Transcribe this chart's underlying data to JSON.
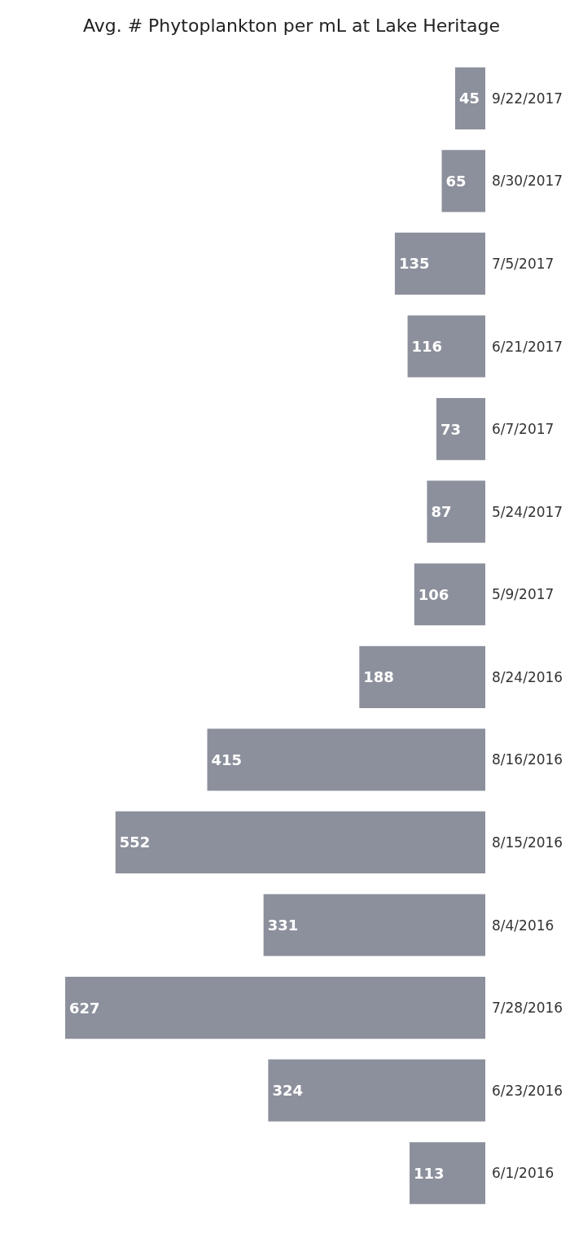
{
  "chart_data": {
    "type": "bar",
    "title": "Avg. # Phytoplankton per mL at Lake Heritage",
    "orientation": "horizontal",
    "categories": [
      "9/22/2017",
      "8/30/2017",
      "7/5/2017",
      "6/21/2017",
      "6/7/2017",
      "5/24/2017",
      "5/9/2017",
      "8/24/2016",
      "8/16/2016",
      "8/15/2016",
      "8/4/2016",
      "7/28/2016",
      "6/23/2016",
      "6/1/2016"
    ],
    "values": [
      45,
      65,
      135,
      116,
      73,
      87,
      106,
      188,
      415,
      552,
      331,
      627,
      324,
      113
    ],
    "color": "#8c909c",
    "data_labels": true
  }
}
